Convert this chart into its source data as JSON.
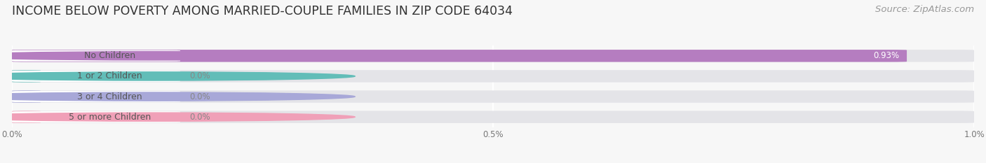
{
  "title": "INCOME BELOW POVERTY AMONG MARRIED-COUPLE FAMILIES IN ZIP CODE 64034",
  "source": "Source: ZipAtlas.com",
  "categories": [
    "No Children",
    "1 or 2 Children",
    "3 or 4 Children",
    "5 or more Children"
  ],
  "values": [
    0.93,
    0.0,
    0.0,
    0.0
  ],
  "bar_colors": [
    "#b57dc0",
    "#62bdb8",
    "#a8a8d8",
    "#f0a0b8"
  ],
  "xlim_max": 1.0,
  "xticks": [
    0.0,
    0.5,
    1.0
  ],
  "xtick_labels": [
    "0.0%",
    "0.5%",
    "1.0%"
  ],
  "background_color": "#f7f7f7",
  "bar_bg_color": "#e4e4e8",
  "title_fontsize": 12.5,
  "source_fontsize": 9.5,
  "label_fontsize": 9,
  "value_fontsize": 8.5,
  "bar_height": 0.6,
  "fig_width": 14.06,
  "fig_height": 2.33
}
